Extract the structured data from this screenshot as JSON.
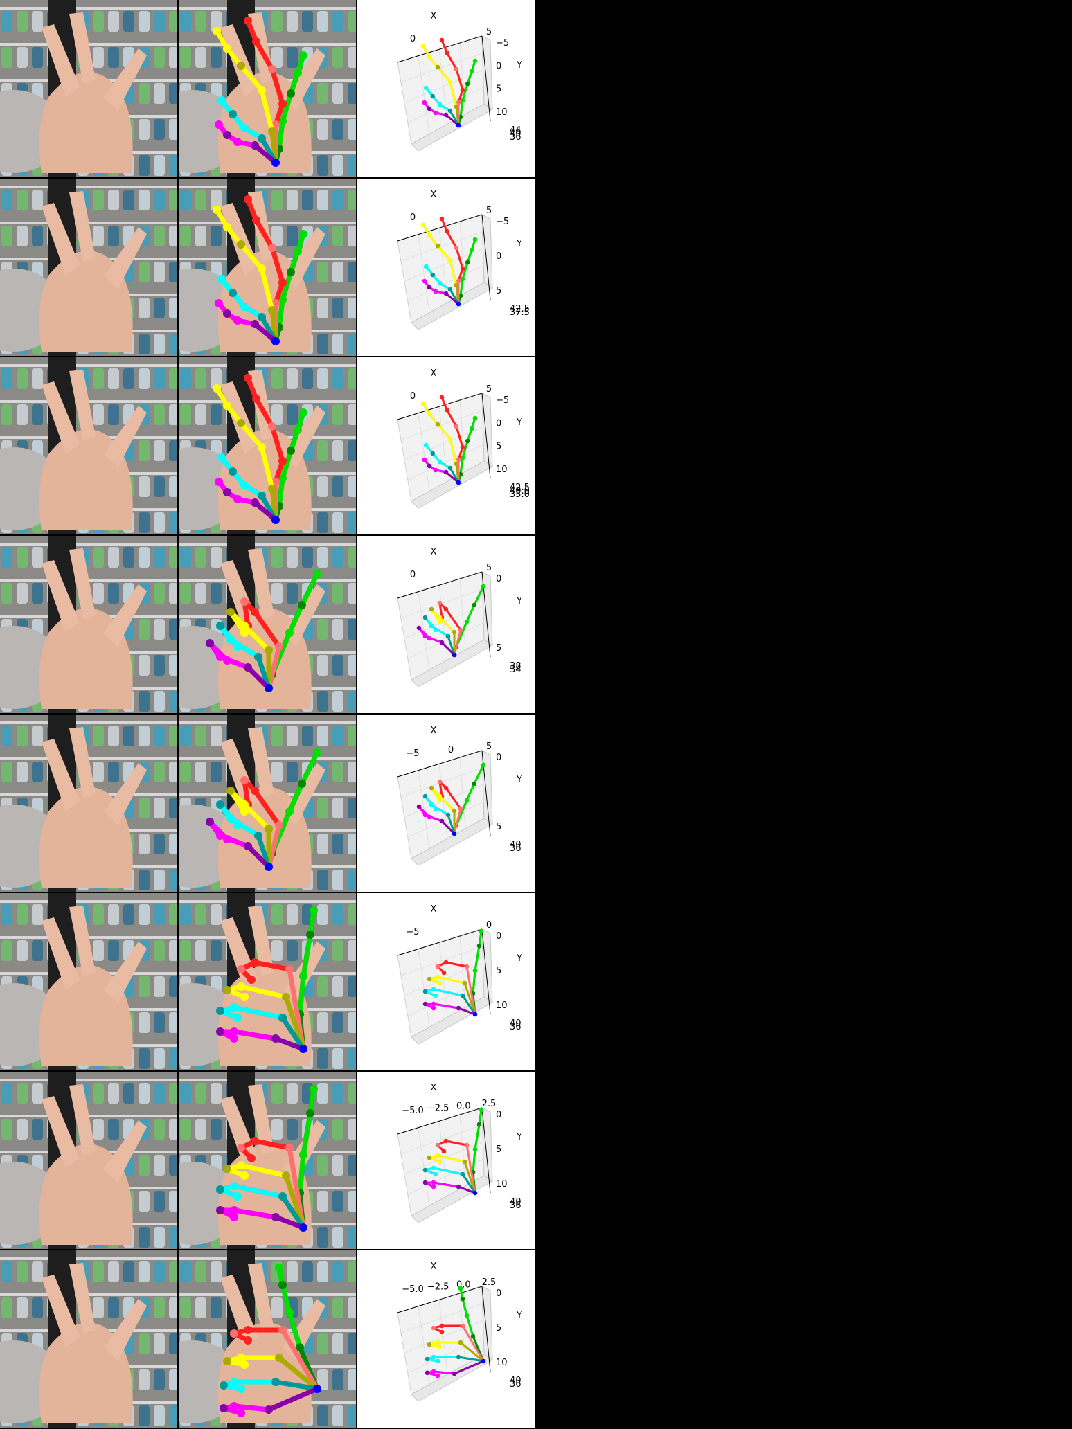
{
  "panels": [
    {
      "x_label": "X",
      "y_label": "Y",
      "x_ticks": [
        "0",
        "5"
      ],
      "y_ticks": [
        "−5",
        "0",
        "5",
        "10"
      ],
      "z_ticks": [
        "44",
        "40",
        "36"
      ],
      "pose": "spread"
    },
    {
      "x_label": "X",
      "y_label": "Y",
      "x_ticks": [
        "0",
        "5"
      ],
      "y_ticks": [
        "−5",
        "0",
        "5"
      ],
      "z_ticks": [
        "42.5",
        "37.5"
      ],
      "pose": "spread"
    },
    {
      "x_label": "X",
      "y_label": "Y",
      "x_ticks": [
        "0",
        "5"
      ],
      "y_ticks": [
        "−5",
        "0",
        "5",
        "10"
      ],
      "z_ticks": [
        "42.5",
        "40.0",
        "35.0"
      ],
      "pose": "spread"
    },
    {
      "x_label": "X",
      "y_label": "Y",
      "x_ticks": [
        "0",
        "5"
      ],
      "y_ticks": [
        "0",
        "5"
      ],
      "z_ticks": [
        "38",
        "34"
      ],
      "pose": "curl"
    },
    {
      "x_label": "X",
      "y_label": "Y",
      "x_ticks": [
        "−5",
        "0",
        "5"
      ],
      "y_ticks": [
        "0",
        "5"
      ],
      "z_ticks": [
        "40",
        "36"
      ],
      "pose": "curl"
    },
    {
      "x_label": "X",
      "y_label": "Y",
      "x_ticks": [
        "−5",
        "0"
      ],
      "y_ticks": [
        "0",
        "5",
        "10"
      ],
      "z_ticks": [
        "40",
        "36"
      ],
      "pose": "thumb"
    },
    {
      "x_label": "X",
      "y_label": "Y",
      "x_ticks": [
        "−5.0",
        "−2.5",
        "0.0",
        "2.5"
      ],
      "y_ticks": [
        "0",
        "5",
        "10"
      ],
      "z_ticks": [
        "40",
        "36"
      ],
      "pose": "thumb"
    },
    {
      "x_label": "X",
      "y_label": "Y",
      "x_ticks": [
        "−5.0",
        "−2.5",
        "0.0",
        "2.5"
      ],
      "y_ticks": [
        "0",
        "5",
        "10"
      ],
      "z_ticks": [
        "40",
        "36"
      ],
      "pose": "thumbsup"
    }
  ],
  "colors": {
    "thumb": "#00e000",
    "thumb_dark": "#008800",
    "index": "#ff2020",
    "index_light": "#ff7070",
    "middle": "#ffff00",
    "middle_dark": "#aaaa00",
    "ring": "#00ffff",
    "ring_dark": "#009999",
    "pinky": "#ff00ff",
    "pinky_dark": "#8800aa",
    "wrist": "#0000ff"
  }
}
